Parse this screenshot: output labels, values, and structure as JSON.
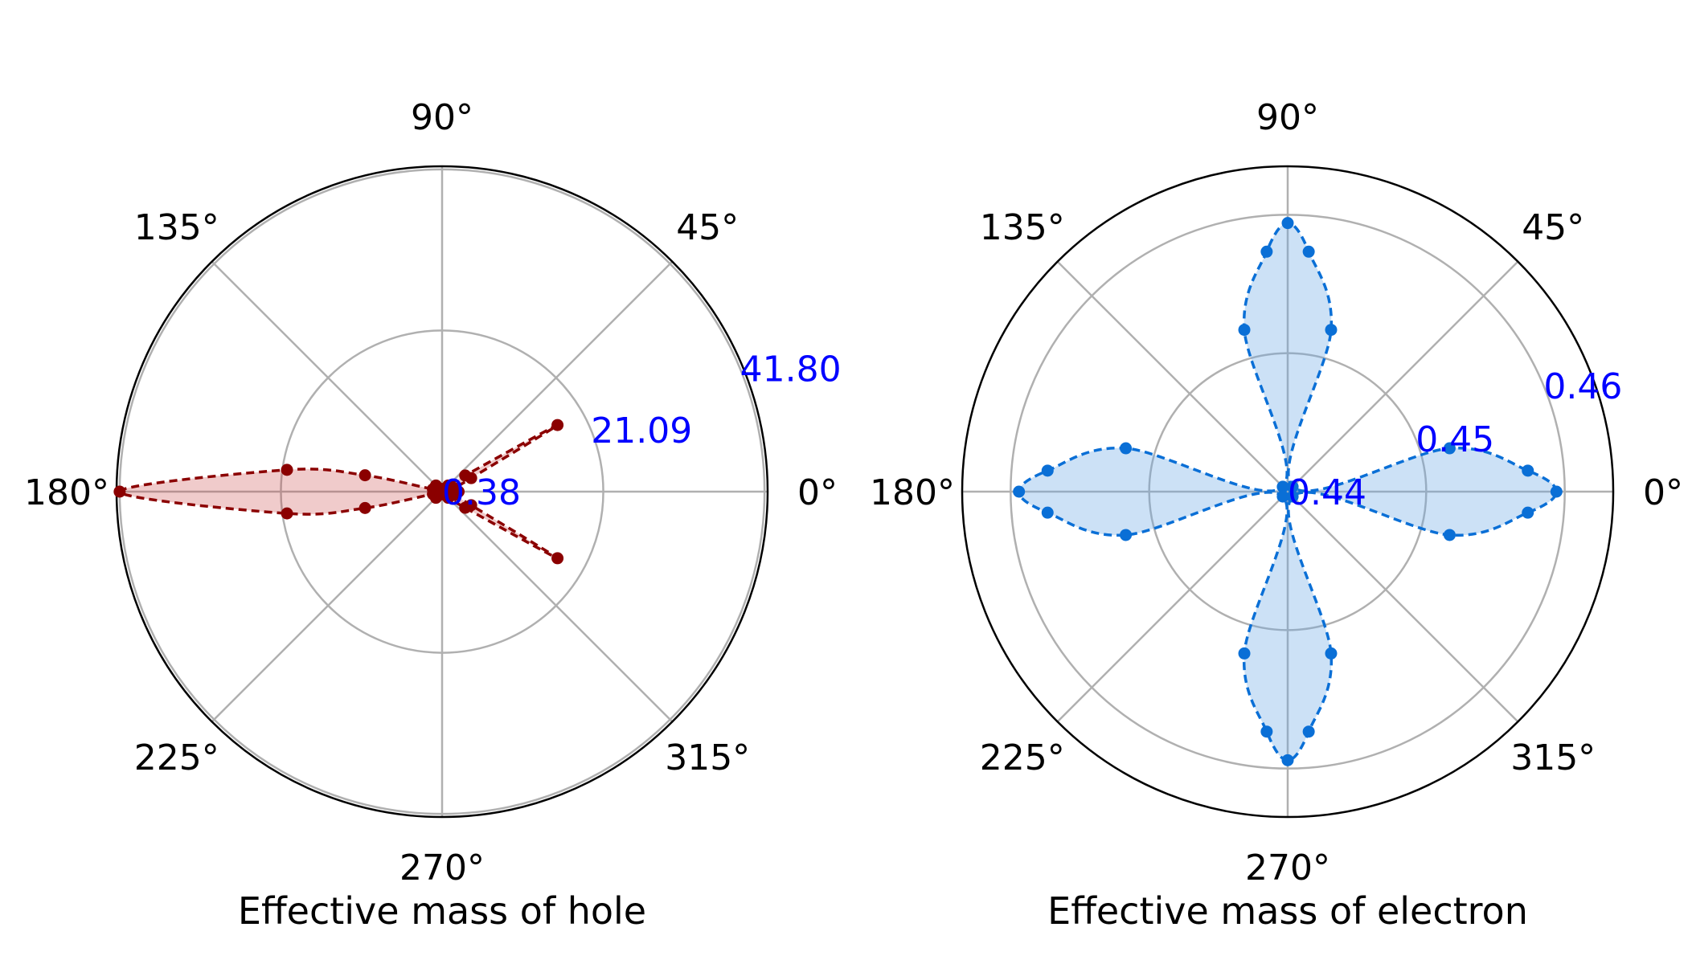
{
  "chart_data": [
    {
      "type": "polar",
      "xlabel": "Effective mass of hole",
      "theta_tick_labels": [
        "0°",
        "45°",
        "90°",
        "135°",
        "180°",
        "225°",
        "270°",
        "315°"
      ],
      "theta_ticks_deg": [
        0,
        45,
        90,
        135,
        180,
        225,
        270,
        315
      ],
      "r_tick_labels": [
        "0.38",
        "21.09",
        "41.80"
      ],
      "r_ticks": [
        0.38,
        21.09,
        41.8
      ],
      "rlim": [
        0.38,
        42.2
      ],
      "grid": true,
      "color": "#8b0000",
      "fill_color": "rgba(200,70,70,0.28)",
      "line_style": "dashed",
      "series": [
        {
          "points": [
            {
              "theta": 0,
              "r": 2.5
            },
            {
              "theta": 5,
              "r": 1.9
            },
            {
              "theta": 15,
              "r": 2.0
            },
            {
              "theta": 25,
              "r": 4.5
            },
            {
              "theta": 30,
              "r": 17.5
            },
            {
              "theta": 35,
              "r": 4.0
            },
            {
              "theta": 45,
              "r": 1.5
            },
            {
              "theta": 60,
              "r": 0.8
            },
            {
              "theta": 90,
              "r": 0.6
            },
            {
              "theta": 120,
              "r": 0.8
            },
            {
              "theta": 135,
              "r": 1.5
            },
            {
              "theta": 150,
              "r": 1.4
            },
            {
              "theta": 165,
              "r": 1.6
            },
            {
              "theta": 168,
              "r": 10.5
            },
            {
              "theta": 172,
              "r": 20.5
            },
            {
              "theta": 180,
              "r": 41.8
            },
            {
              "theta": 188,
              "r": 20.5
            },
            {
              "theta": 192,
              "r": 10.5
            },
            {
              "theta": 195,
              "r": 1.6
            },
            {
              "theta": 210,
              "r": 1.4
            },
            {
              "theta": 225,
              "r": 1.5
            },
            {
              "theta": 240,
              "r": 0.8
            },
            {
              "theta": 270,
              "r": 0.6
            },
            {
              "theta": 300,
              "r": 0.8
            },
            {
              "theta": 315,
              "r": 1.5
            },
            {
              "theta": 325,
              "r": 4.0
            },
            {
              "theta": 330,
              "r": 17.5
            },
            {
              "theta": 335,
              "r": 4.5
            },
            {
              "theta": 345,
              "r": 2.0
            },
            {
              "theta": 355,
              "r": 1.9
            }
          ]
        }
      ]
    },
    {
      "type": "polar",
      "xlabel": "Effective mass of electron",
      "theta_tick_labels": [
        "0°",
        "45°",
        "90°",
        "135°",
        "180°",
        "225°",
        "270°",
        "315°"
      ],
      "theta_ticks_deg": [
        0,
        45,
        90,
        135,
        180,
        225,
        270,
        315
      ],
      "r_tick_labels": [
        "0.44",
        "0.45",
        "0.46"
      ],
      "r_ticks": [
        0.44,
        0.45,
        0.46
      ],
      "rlim": [
        0.44,
        0.4635
      ],
      "grid": true,
      "color": "#0a6fd6",
      "fill_color": "rgba(110,170,230,0.35)",
      "line_style": "dashed",
      "series": [
        {
          "points": [
            {
              "theta": 0,
              "r": 0.4594
            },
            {
              "theta": 5,
              "r": 0.4574
            },
            {
              "theta": 15,
              "r": 0.4521
            },
            {
              "theta": 45,
              "r": 0.4405
            },
            {
              "theta": 75,
              "r": 0.4521
            },
            {
              "theta": 85,
              "r": 0.4574
            },
            {
              "theta": 90,
              "r": 0.4594
            },
            {
              "theta": 95,
              "r": 0.4574
            },
            {
              "theta": 105,
              "r": 0.4521
            },
            {
              "theta": 135,
              "r": 0.4405
            },
            {
              "theta": 165,
              "r": 0.4521
            },
            {
              "theta": 175,
              "r": 0.4574
            },
            {
              "theta": 180,
              "r": 0.4594
            },
            {
              "theta": 185,
              "r": 0.4574
            },
            {
              "theta": 195,
              "r": 0.4521
            },
            {
              "theta": 225,
              "r": 0.4405
            },
            {
              "theta": 255,
              "r": 0.4521
            },
            {
              "theta": 265,
              "r": 0.4574
            },
            {
              "theta": 270,
              "r": 0.4594
            },
            {
              "theta": 275,
              "r": 0.4574
            },
            {
              "theta": 285,
              "r": 0.4521
            },
            {
              "theta": 315,
              "r": 0.4405
            },
            {
              "theta": 345,
              "r": 0.4521
            },
            {
              "theta": 355,
              "r": 0.4574
            }
          ]
        }
      ]
    }
  ]
}
